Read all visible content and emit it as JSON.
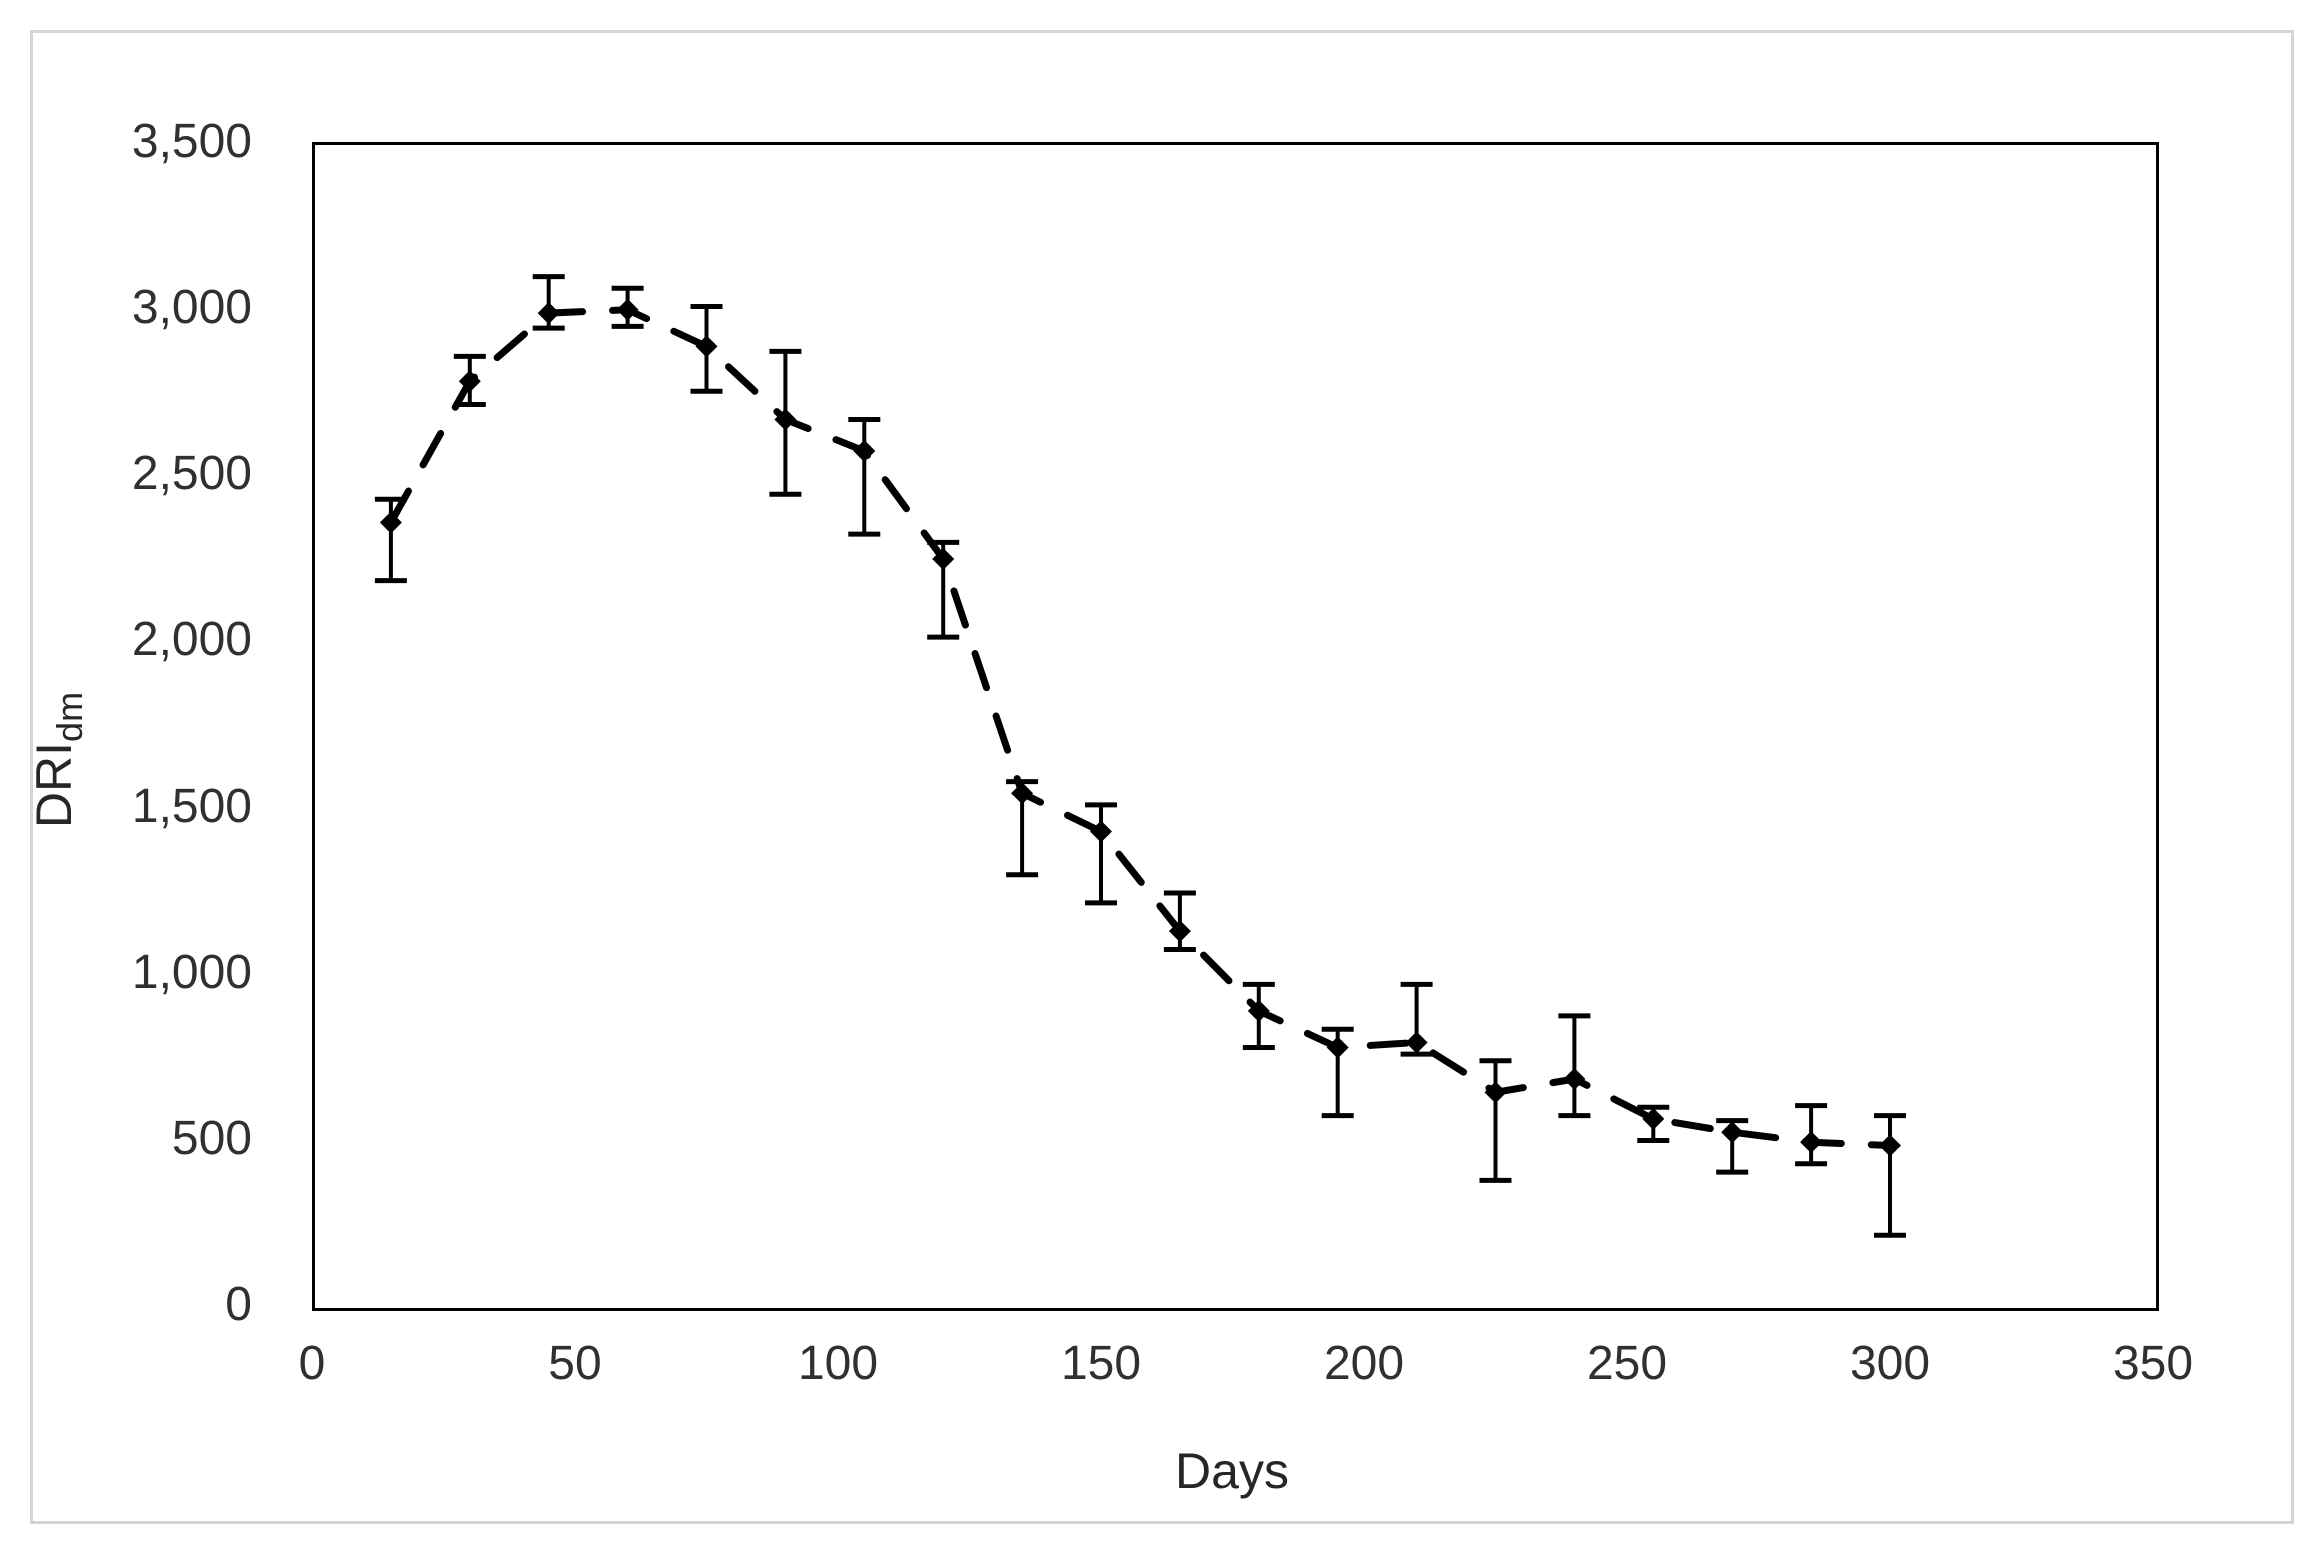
{
  "figure": {
    "background_color": "#ffffff",
    "frame_border_color": "#d4d4d4",
    "axis_line_color": "#000000",
    "tick_label_color": "#303030",
    "series_color": "#000000"
  },
  "chart_data": {
    "type": "scatter",
    "title": "",
    "xlabel": "Days",
    "ylabel": "DRI",
    "ylabel_subscript": "dm",
    "xlim": [
      0,
      350
    ],
    "ylim": [
      0,
      3500
    ],
    "x_ticks": [
      0,
      50,
      100,
      150,
      200,
      250,
      300,
      350
    ],
    "x_tick_labels": [
      "0",
      "50",
      "100",
      "150",
      "200",
      "250",
      "300",
      "350"
    ],
    "y_ticks": [
      0,
      500,
      1000,
      1500,
      2000,
      2500,
      3000,
      3500
    ],
    "y_tick_labels": [
      "0",
      "500",
      "1,000",
      "1,500",
      "2,000",
      "2,500",
      "3,000",
      "3,500"
    ],
    "grid": false,
    "legend": false,
    "marker": "diamond",
    "line_style": "dashed",
    "error_bars": true,
    "series": [
      {
        "name": "DRIdm",
        "points": [
          {
            "x": 15,
            "y": 2355,
            "err_lo": 2180,
            "err_hi": 2425
          },
          {
            "x": 30,
            "y": 2780,
            "err_lo": 2710,
            "err_hi": 2855
          },
          {
            "x": 45,
            "y": 2985,
            "err_lo": 2940,
            "err_hi": 3095
          },
          {
            "x": 60,
            "y": 2995,
            "err_lo": 2945,
            "err_hi": 3060
          },
          {
            "x": 75,
            "y": 2885,
            "err_lo": 2750,
            "err_hi": 3005
          },
          {
            "x": 90,
            "y": 2665,
            "err_lo": 2440,
            "err_hi": 2870
          },
          {
            "x": 105,
            "y": 2570,
            "err_lo": 2320,
            "err_hi": 2665
          },
          {
            "x": 120,
            "y": 2245,
            "err_lo": 2010,
            "err_hi": 2295
          },
          {
            "x": 135,
            "y": 1540,
            "err_lo": 1295,
            "err_hi": 1575
          },
          {
            "x": 150,
            "y": 1425,
            "err_lo": 1210,
            "err_hi": 1505
          },
          {
            "x": 165,
            "y": 1125,
            "err_lo": 1070,
            "err_hi": 1240
          },
          {
            "x": 180,
            "y": 885,
            "err_lo": 775,
            "err_hi": 965
          },
          {
            "x": 195,
            "y": 775,
            "err_lo": 570,
            "err_hi": 830
          },
          {
            "x": 210,
            "y": 790,
            "err_lo": 755,
            "err_hi": 965
          },
          {
            "x": 225,
            "y": 640,
            "err_lo": 375,
            "err_hi": 735
          },
          {
            "x": 240,
            "y": 680,
            "err_lo": 570,
            "err_hi": 870
          },
          {
            "x": 255,
            "y": 560,
            "err_lo": 495,
            "err_hi": 595
          },
          {
            "x": 270,
            "y": 520,
            "err_lo": 400,
            "err_hi": 555
          },
          {
            "x": 285,
            "y": 490,
            "err_lo": 425,
            "err_hi": 600
          },
          {
            "x": 300,
            "y": 480,
            "err_lo": 210,
            "err_hi": 570
          }
        ]
      }
    ]
  }
}
